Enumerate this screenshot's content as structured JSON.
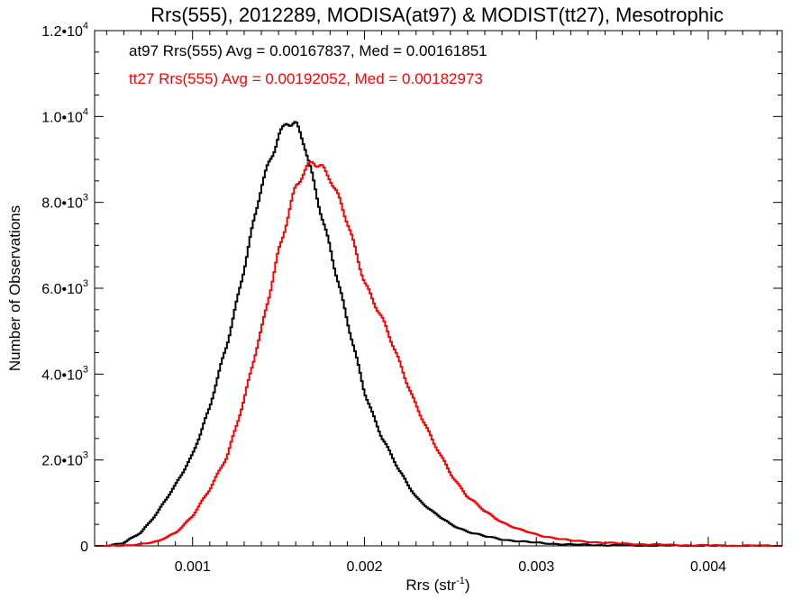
{
  "chart_data": {
    "type": "line",
    "title": "Rrs(555), 2012289, MODISA(at97) & MODIST(tt27), Mesotrophic",
    "xlabel": {
      "main": "Rrs (str",
      "sup": "-1",
      "close": ")"
    },
    "ylabel": "Number of Observations",
    "xlim": [
      0.00043,
      0.00443
    ],
    "ylim": [
      0,
      12000
    ],
    "x_ticks": [
      0.001,
      0.002,
      0.003,
      0.004
    ],
    "x_tick_labels": [
      "0.001",
      "0.002",
      "0.003",
      "0.004"
    ],
    "y_ticks": [
      0,
      2000,
      4000,
      6000,
      8000,
      10000,
      12000
    ],
    "y_tick_labels": [
      {
        "base": "0",
        "exp": ""
      },
      {
        "base": "2.0•10",
        "exp": "3"
      },
      {
        "base": "4.0•10",
        "exp": "3"
      },
      {
        "base": "6.0•10",
        "exp": "3"
      },
      {
        "base": "8.0•10",
        "exp": "3"
      },
      {
        "base": "1.0•10",
        "exp": "4"
      },
      {
        "base": "1.2•10",
        "exp": "4"
      }
    ],
    "grid": false,
    "legend_position": "top-left",
    "series": [
      {
        "name": "at97",
        "color": "#000000",
        "legend_text": "at97 Rrs(555) Avg = 0.00167837, Med = 0.00161851",
        "x": [
          0.00043,
          0.0005,
          0.0006,
          0.0007,
          0.0008,
          0.0009,
          0.001,
          0.0011,
          0.0012,
          0.0013,
          0.0014,
          0.0015,
          0.00155,
          0.0016,
          0.00165,
          0.0017,
          0.0018,
          0.0019,
          0.002,
          0.0021,
          0.0022,
          0.0023,
          0.0024,
          0.0025,
          0.0026,
          0.0027,
          0.0028,
          0.003,
          0.0032,
          0.0035,
          0.004,
          0.00443
        ],
        "y": [
          0,
          0,
          60,
          320,
          800,
          1400,
          2150,
          3200,
          4700,
          6500,
          8300,
          9600,
          9950,
          9800,
          9300,
          8500,
          7000,
          5200,
          3600,
          2550,
          1750,
          1150,
          780,
          500,
          340,
          220,
          150,
          70,
          30,
          10,
          0,
          0
        ]
      },
      {
        "name": "tt27",
        "color": "#ff0000",
        "legend_text": "tt27 Rrs(555) Avg = 0.00192052, Med = 0.00182973",
        "x": [
          0.00043,
          0.0006,
          0.0008,
          0.0009,
          0.001,
          0.0011,
          0.0012,
          0.0013,
          0.0014,
          0.0015,
          0.0016,
          0.0017,
          0.00175,
          0.0018,
          0.0019,
          0.002,
          0.0021,
          0.0022,
          0.0023,
          0.0024,
          0.0025,
          0.0026,
          0.0027,
          0.0028,
          0.0029,
          0.003,
          0.0032,
          0.0035,
          0.0038,
          0.004,
          0.00443
        ],
        "y": [
          0,
          0,
          100,
          300,
          700,
          1300,
          2100,
          3400,
          5000,
          6900,
          8300,
          9000,
          8900,
          8600,
          7500,
          6200,
          5300,
          4300,
          3300,
          2400,
          1700,
          1150,
          800,
          560,
          380,
          260,
          120,
          50,
          20,
          10,
          0
        ]
      }
    ]
  }
}
